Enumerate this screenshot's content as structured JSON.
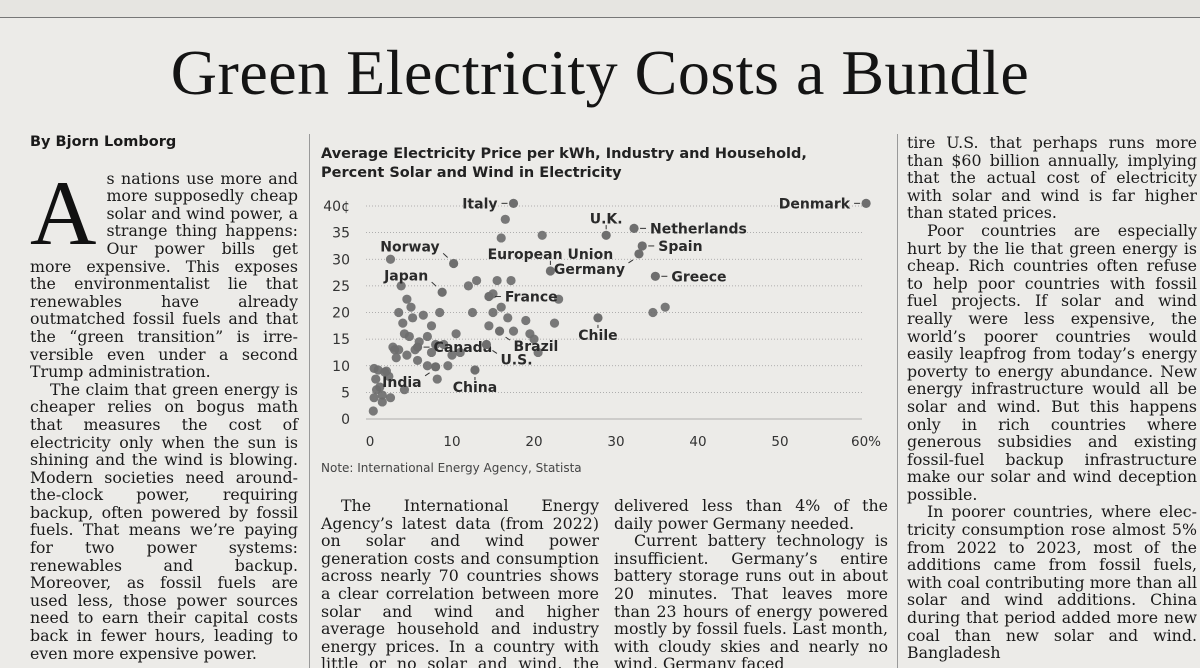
{
  "headline": "Green Electricity Costs a Bundle",
  "byline": "By Bjorn Lomborg",
  "left_column": {
    "dropcap": "A",
    "p1_rest": "s nations use more and more supposedly cheap so­lar and wind power, a strange thing happens: Our power bills get more ex­pensive. This exposes the environ­mentalist lie that renewables have already outmatched fossil fuels and that the “green transition” is irre­versible even under a second Trump administration.",
    "p2": "The claim that green energy is cheaper relies on bogus math that measures the cost of electricity only when the sun is shining and the wind is blowing. Modern societies need around-the-clock power, requiring backup, often powered by fossil fu­els. That means we’re paying for two power systems: renewables and backup. Moreover, as fossil fuels are used less, those power sources need to earn their capital costs back in fewer hours, leading to even more expensive power."
  },
  "middle_column_1": {
    "p1": "The International Energy Agency’s latest data (from 2022) on solar and wind power generation costs and consumption across nearly 70 coun­tries shows a clear correlation be­tween more solar and wind and higher average household and indus­try energy prices. In a country with little or no solar and wind, the aver-"
  },
  "middle_column_2": {
    "p1": "delivered less than 4% of the daily power Germany needed.",
    "p2": "Current battery technology is in­sufficient. Germany’s entire battery storage runs out in about 20 min­utes. That leaves more than 23 hours of energy powered mostly by fossil fuels. Last month, with cloudy skies and nearly no wind, Germany faced"
  },
  "right_column": {
    "p1": "tire U.S. that perhaps runs more than $60 billion annually, implying that the actual cost of electricity with so­lar and wind is far higher than stated prices.",
    "p2": "Poor countries are especially hurt by the lie that green energy is cheap. Rich countries often refuse to help poor countries with fossil fuel proj­ects. If solar and wind really were less expensive, the world’s poorer countries would easily leapfrog from today’s energy poverty to energy abundance. New energy infrastruc­ture would all be solar and wind. But this happens only in rich countries where generous subsidies and exist­ing fossil-fuel backup infrastructure make our solar and wind deception possible.",
    "p3": "In poorer countries, where elec­tricity consumption rose almost 5% from 2022 to 2023, most of the addi­tions came from fossil fuels, with coal contributing more than all solar and wind additions. China during that period added more new coal than new solar and wind. Bangladesh"
  },
  "chart_data": {
    "type": "scatter",
    "title_line1": "Average Electricity Price per kWh, Industry and Household,",
    "title_line2": "Percent Solar and Wind in Electricity",
    "note": "Note: International Energy Agency, Statista",
    "xlim": [
      0,
      60
    ],
    "ylim": [
      0,
      40
    ],
    "x_ticks": [
      "0",
      "10",
      "20",
      "30",
      "40",
      "50",
      "60%"
    ],
    "x_tick_values": [
      0,
      10,
      20,
      30,
      40,
      50,
      60
    ],
    "y_ticks": [
      "0",
      "5",
      "10",
      "15",
      "20",
      "25",
      "30",
      "35",
      "40¢"
    ],
    "y_tick_values": [
      0,
      5,
      10,
      15,
      20,
      25,
      30,
      35,
      40
    ],
    "grid": "horizontal-dotted",
    "point_color": "#6e6e6e",
    "labeled_points": [
      {
        "name": "Italy",
        "x": 17.5,
        "y": 40.5,
        "label_side": "left"
      },
      {
        "name": "U.K.",
        "x": 28.8,
        "y": 34.5,
        "label_side": "above"
      },
      {
        "name": "Netherlands",
        "x": 32.2,
        "y": 35.8,
        "label_side": "right"
      },
      {
        "name": "Norway",
        "x": 10.2,
        "y": 29.2,
        "label_side": "above-left"
      },
      {
        "name": "European Union",
        "x": 22.0,
        "y": 27.8,
        "label_side": "above"
      },
      {
        "name": "Spain",
        "x": 33.2,
        "y": 32.5,
        "label_side": "right"
      },
      {
        "name": "Greece",
        "x": 34.8,
        "y": 26.8,
        "label_side": "right"
      },
      {
        "name": "Germany",
        "x": 32.8,
        "y": 31.0,
        "label_side": "below-left"
      },
      {
        "name": "Japan",
        "x": 8.8,
        "y": 23.8,
        "label_side": "above-left"
      },
      {
        "name": "France",
        "x": 14.5,
        "y": 23.0,
        "label_side": "right"
      },
      {
        "name": "Canada",
        "x": 5.8,
        "y": 13.5,
        "label_side": "right"
      },
      {
        "name": "Brazil",
        "x": 15.8,
        "y": 16.5,
        "label_side": "below-right"
      },
      {
        "name": "Chile",
        "x": 27.8,
        "y": 19.0,
        "label_side": "below"
      },
      {
        "name": "U.S.",
        "x": 14.2,
        "y": 14.0,
        "label_side": "below-right"
      },
      {
        "name": "India",
        "x": 8.0,
        "y": 9.8,
        "label_side": "below-left"
      },
      {
        "name": "China",
        "x": 12.8,
        "y": 9.2,
        "label_side": "below"
      },
      {
        "name": "Denmark",
        "x": 60.5,
        "y": 40.5,
        "label_side": "left"
      }
    ],
    "other_points": [
      [
        0.4,
        1.5
      ],
      [
        0.5,
        4.0
      ],
      [
        0.8,
        5.5
      ],
      [
        0.7,
        7.5
      ],
      [
        1.0,
        9.2
      ],
      [
        0.5,
        9.5
      ],
      [
        1.5,
        3.2
      ],
      [
        1.2,
        6.0
      ],
      [
        1.8,
        8.8
      ],
      [
        2.0,
        9.0
      ],
      [
        2.3,
        8.0
      ],
      [
        2.5,
        30.0
      ],
      [
        2.8,
        13.5
      ],
      [
        3.0,
        13.0
      ],
      [
        3.2,
        11.5
      ],
      [
        3.5,
        13.0
      ],
      [
        3.5,
        20.0
      ],
      [
        3.8,
        25.0
      ],
      [
        4.0,
        18.0
      ],
      [
        4.2,
        16.0
      ],
      [
        4.5,
        12.0
      ],
      [
        4.5,
        22.5
      ],
      [
        4.8,
        15.5
      ],
      [
        5.0,
        21.0
      ],
      [
        5.2,
        19.0
      ],
      [
        5.5,
        13.0
      ],
      [
        5.8,
        11.0
      ],
      [
        6.0,
        14.5
      ],
      [
        6.5,
        19.5
      ],
      [
        7.0,
        10.0
      ],
      [
        7.0,
        15.5
      ],
      [
        7.5,
        17.5
      ],
      [
        7.5,
        12.5
      ],
      [
        8.0,
        14.0
      ],
      [
        8.2,
        7.5
      ],
      [
        8.5,
        20.0
      ],
      [
        9.0,
        14.0
      ],
      [
        9.5,
        10.0
      ],
      [
        10.0,
        12.0
      ],
      [
        10.5,
        16.0
      ],
      [
        11.0,
        12.5
      ],
      [
        12.0,
        25.0
      ],
      [
        12.5,
        20.0
      ],
      [
        13.0,
        26.0
      ],
      [
        14.5,
        17.5
      ],
      [
        15.0,
        20.0
      ],
      [
        15.0,
        23.5
      ],
      [
        15.5,
        26.0
      ],
      [
        16.0,
        34.0
      ],
      [
        16.0,
        21.0
      ],
      [
        16.5,
        37.5
      ],
      [
        16.8,
        19.0
      ],
      [
        17.2,
        26.0
      ],
      [
        17.5,
        16.5
      ],
      [
        19.0,
        18.5
      ],
      [
        19.5,
        16.0
      ],
      [
        20.0,
        15.0
      ],
      [
        20.5,
        12.5
      ],
      [
        21.0,
        34.5
      ],
      [
        22.5,
        18.0
      ],
      [
        23.0,
        22.5
      ],
      [
        34.5,
        20.0
      ],
      [
        36.0,
        21.0
      ],
      [
        1.5,
        4.5
      ],
      [
        2.5,
        4.0
      ],
      [
        4.2,
        5.5
      ]
    ]
  }
}
